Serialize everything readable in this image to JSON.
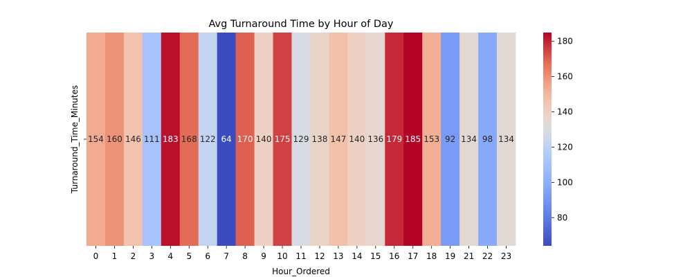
{
  "chart_data": {
    "type": "heatmap",
    "title": "Avg Turnaround Time by Hour of Day",
    "xlabel": "Hour_Ordered",
    "ylabel": "Turnaround_Time_Minutes",
    "categories": [
      "0",
      "1",
      "2",
      "3",
      "4",
      "5",
      "6",
      "7",
      "8",
      "9",
      "10",
      "11",
      "12",
      "13",
      "14",
      "15",
      "16",
      "17",
      "18",
      "19",
      "21",
      "22",
      "23"
    ],
    "values": [
      154,
      160,
      146,
      111,
      183,
      168,
      122,
      64,
      170,
      140,
      175,
      129,
      138,
      147,
      140,
      136,
      179,
      185,
      153,
      92,
      134,
      98,
      134
    ],
    "y_tick_labels": [
      ""
    ],
    "colormap": "coolwarm",
    "colorbar": {
      "range": [
        64,
        185
      ],
      "ticks": [
        80,
        100,
        120,
        140,
        160,
        180
      ]
    },
    "grid": false
  }
}
